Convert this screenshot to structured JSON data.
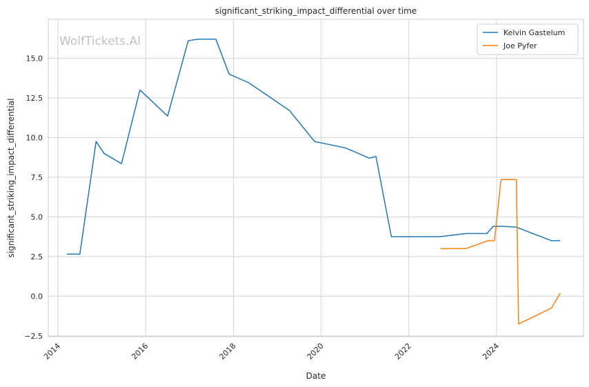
{
  "chart_data": {
    "type": "line",
    "title": "significant_striking_impact_differential over time",
    "xlabel": "Date",
    "ylabel": "significant_striking_impact_differential",
    "watermark": "WolfTickets.AI",
    "x_ticks": [
      "2014",
      "2016",
      "2018",
      "2020",
      "2022",
      "2024"
    ],
    "y_ticks": [
      "−2.5",
      "0.0",
      "2.5",
      "5.0",
      "7.5",
      "10.0",
      "12.5",
      "15.0"
    ],
    "xlim": [
      2013.78,
      2025.98
    ],
    "ylim": [
      -2.55,
      17.45
    ],
    "grid": true,
    "legend_position": "top-right",
    "series": [
      {
        "name": "Kelvin Gastelum",
        "color": "#1f77b4",
        "x": [
          2014.2,
          2014.5,
          2014.87,
          2015.05,
          2015.45,
          2015.87,
          2016.5,
          2016.97,
          2017.2,
          2017.6,
          2017.9,
          2018.35,
          2019.28,
          2019.85,
          2020.55,
          2021.1,
          2021.25,
          2021.6,
          2022.05,
          2022.7,
          2023.3,
          2023.78,
          2023.92,
          2024.15,
          2024.45,
          2025.25,
          2025.45
        ],
        "y": [
          2.65,
          2.65,
          9.75,
          9.0,
          8.35,
          13.0,
          11.35,
          16.1,
          16.2,
          16.2,
          14.0,
          13.45,
          11.7,
          9.75,
          9.35,
          8.7,
          8.8,
          3.75,
          3.75,
          3.75,
          3.95,
          3.95,
          4.4,
          4.4,
          4.35,
          3.5,
          3.5
        ]
      },
      {
        "name": "Joe Pyfer",
        "color": "#ff7f0e",
        "x": [
          2022.72,
          2023.3,
          2023.8,
          2023.95,
          2024.1,
          2024.45,
          2024.5,
          2025.25,
          2025.45
        ],
        "y": [
          3.0,
          3.0,
          3.5,
          3.5,
          7.35,
          7.35,
          -1.75,
          -0.75,
          0.2
        ]
      }
    ]
  }
}
